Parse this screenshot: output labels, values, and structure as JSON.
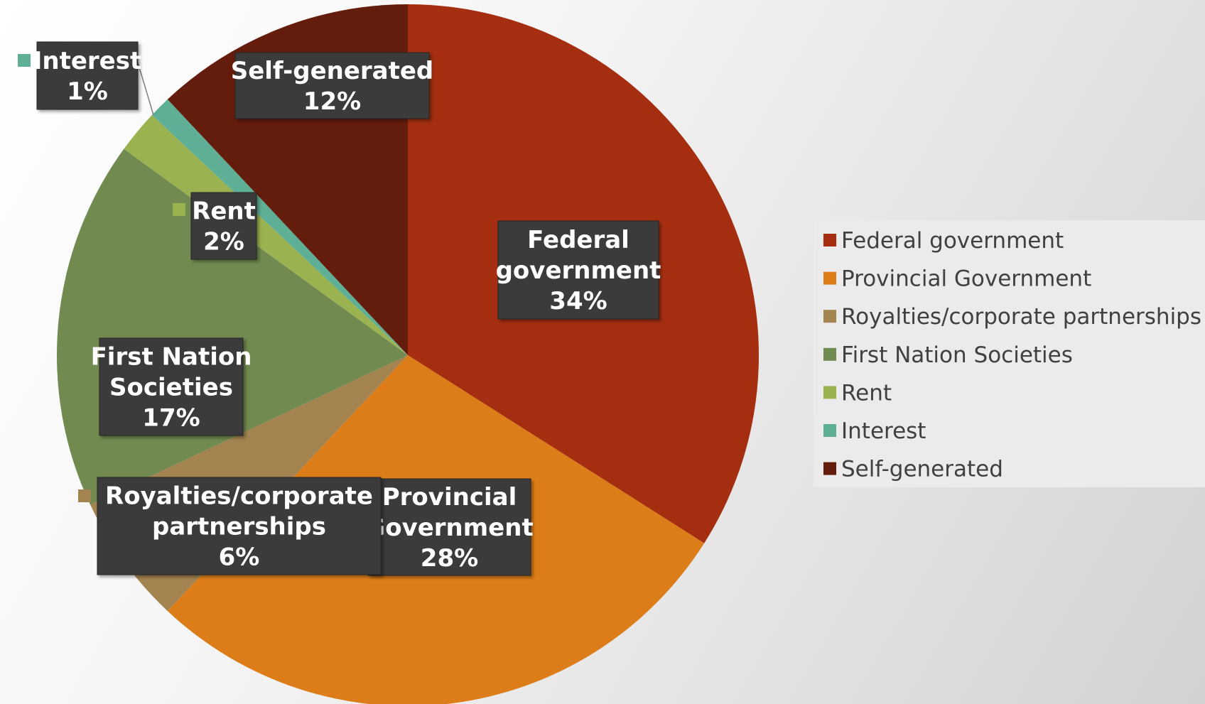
{
  "chart_data": {
    "type": "pie",
    "title": "",
    "legend_position": "right",
    "slices": [
      {
        "name": "Federal government",
        "value": 34,
        "label": "34%",
        "label_lines": [
          "Federal",
          "government"
        ],
        "color": "#A52E10"
      },
      {
        "name": "Provincial Government",
        "value": 28,
        "label": "28%",
        "label_lines": [
          "Provincial",
          "Government"
        ],
        "color": "#DD7D19"
      },
      {
        "name": "Royalties/corporate partnerships",
        "value": 6,
        "label": "6%",
        "label_lines": [
          "Royalties/corporate",
          "partnerships"
        ],
        "color": "#A38350"
      },
      {
        "name": "First Nation Societies",
        "value": 17,
        "label": "17%",
        "label_lines": [
          "First Nation",
          "Societies"
        ],
        "color": "#718A50"
      },
      {
        "name": "Rent",
        "value": 2,
        "label": "2%",
        "label_lines": [
          "Rent"
        ],
        "color": "#9AB24F"
      },
      {
        "name": "Interest",
        "value": 1,
        "label": "1%",
        "label_lines": [
          "Interest"
        ],
        "color": "#5FAF96"
      },
      {
        "name": "Self-generated",
        "value": 12,
        "label": "12%",
        "label_lines": [
          "Self-generated"
        ],
        "color": "#641C0C"
      }
    ]
  }
}
